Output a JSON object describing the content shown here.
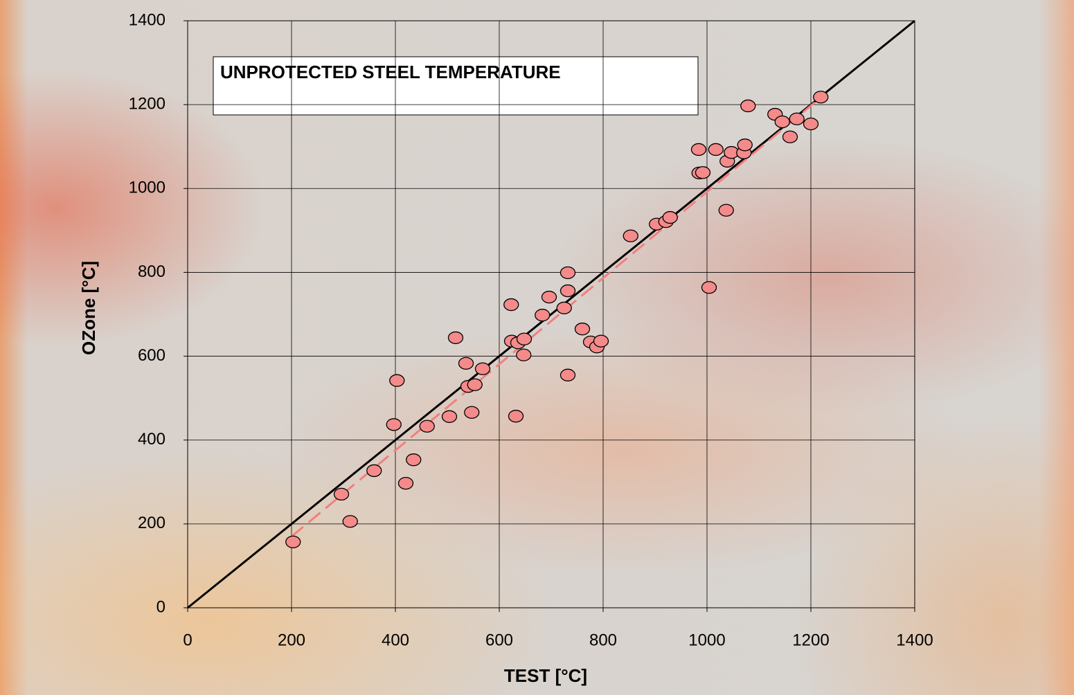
{
  "chart_data": {
    "type": "scatter",
    "title": "UNPROTECTED STEEL TEMPERATURE",
    "xlabel": "TEST [°C]",
    "ylabel": "OZone [°C]",
    "xlim": [
      0,
      1400
    ],
    "ylim": [
      0,
      1400
    ],
    "xticks": [
      0,
      200,
      400,
      600,
      800,
      1000,
      1200,
      1400
    ],
    "yticks": [
      0,
      200,
      400,
      600,
      800,
      1000,
      1200,
      1400
    ],
    "grid": true,
    "series": [
      {
        "type": "scatter",
        "color": "#f48a8a",
        "x": [
          203,
          296,
          313,
          359,
          397,
          403,
          420,
          435,
          461,
          504,
          516,
          536,
          540,
          553,
          547,
          568,
          623,
          624,
          636,
          632,
          648,
          647,
          683,
          696,
          725,
          732,
          732,
          732,
          760,
          776,
          788,
          796,
          853,
          903,
          921,
          929,
          984,
          985,
          992,
          1004,
          1017,
          1037,
          1039,
          1047,
          1071,
          1073,
          1079,
          1131,
          1145,
          1160,
          1173,
          1200,
          1219
        ],
        "values": [
          157,
          271,
          206,
          327,
          437,
          542,
          297,
          353,
          433,
          456,
          644,
          583,
          528,
          532,
          466,
          570,
          723,
          636,
          632,
          457,
          641,
          603,
          698,
          741,
          715,
          799,
          756,
          555,
          665,
          634,
          622,
          636,
          887,
          915,
          921,
          931,
          1093,
          1037,
          1038,
          764,
          1093,
          948,
          1065,
          1086,
          1085,
          1104,
          1197,
          1177,
          1159,
          1123,
          1166,
          1154,
          1218
        ]
      },
      {
        "type": "line",
        "color": "#000000",
        "x": [
          0,
          1400
        ],
        "values": [
          0,
          1400
        ]
      },
      {
        "type": "dashed",
        "color": "#f08080",
        "x": [
          200,
          1220
        ],
        "values": [
          170,
          1218
        ]
      }
    ]
  }
}
